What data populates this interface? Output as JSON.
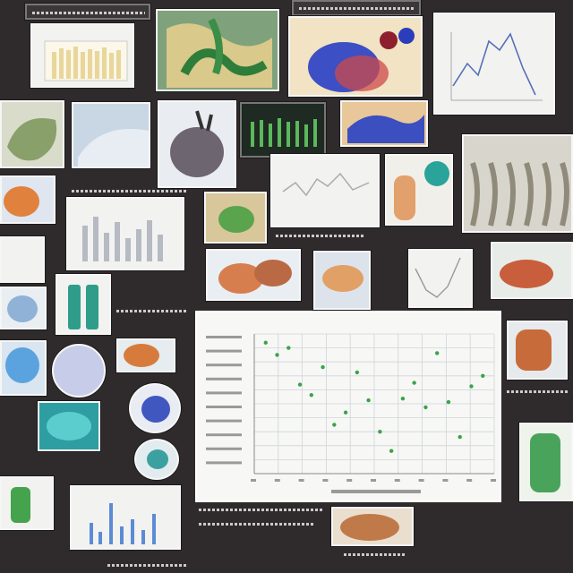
{
  "collage": {
    "description_tags": [
      "chart-thumbnail",
      "anatomy-thumbnail",
      "scatter-plot",
      "bar-chart"
    ]
  },
  "colors": {
    "background": "#2f2b2c",
    "tile": "#f2f2f0",
    "accent_green": "#3aa34a",
    "accent_blue": "#3d5fc7",
    "accent_orange": "#d97b3a",
    "accent_teal": "#2a9f95"
  },
  "chart_data": {
    "type": "scatter",
    "title": "",
    "xlabel": "",
    "ylabel": "",
    "x": [
      1,
      2,
      3,
      4,
      5,
      6,
      7,
      8,
      9,
      10,
      11,
      12,
      13,
      14,
      15,
      16,
      17,
      18,
      19,
      20
    ],
    "y": [
      7.5,
      6.8,
      7.2,
      5.1,
      4.5,
      6.1,
      2.8,
      3.5,
      5.8,
      4.2,
      2.4,
      1.3,
      4.3,
      5.2,
      3.8,
      6.9,
      4.1,
      2.1,
      5.0,
      5.6
    ],
    "grid": true
  }
}
